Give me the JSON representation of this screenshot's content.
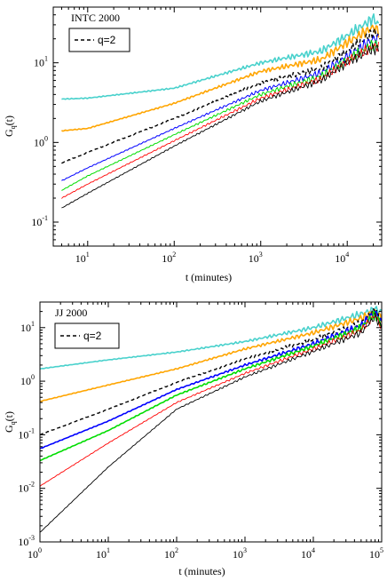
{
  "chart_data": [
    {
      "type": "line",
      "title": "INTC 2000",
      "xlabel": "t (minutes)",
      "ylabel_base": "G",
      "ylabel_sub": "q",
      "ylabel_tail": "(t)",
      "xscale": "log",
      "yscale": "log",
      "xlim": [
        4,
        25000
      ],
      "ylim": [
        0.05,
        50
      ],
      "x_ticks": [
        {
          "value": 10,
          "base": "10",
          "exp": "1"
        },
        {
          "value": 100,
          "base": "10",
          "exp": "2"
        },
        {
          "value": 1000,
          "base": "10",
          "exp": "3"
        },
        {
          "value": 10000,
          "base": "10",
          "exp": "4"
        }
      ],
      "y_ticks": [
        {
          "value": 0.1,
          "base": "10",
          "exp": "-1"
        },
        {
          "value": 1,
          "base": "10",
          "exp": "0"
        },
        {
          "value": 10,
          "base": "10",
          "exp": "1"
        }
      ],
      "legend": {
        "position": "top-left",
        "entries": [
          {
            "label": "q=2",
            "color": "#000000",
            "dash": "dashed"
          }
        ]
      },
      "series": [
        {
          "color": "#48d1cc",
          "width": 1.6,
          "dash": "solid",
          "points": [
            [
              5,
              3.5
            ],
            [
              10,
              3.6
            ],
            [
              100,
              4.8
            ],
            [
              1000,
              10
            ],
            [
              5000,
              14
            ],
            [
              10000,
              22
            ],
            [
              20000,
              36
            ],
            [
              23000,
              30
            ]
          ]
        },
        {
          "color": "#ffa500",
          "width": 1.6,
          "dash": "solid",
          "points": [
            [
              5,
              1.4
            ],
            [
              10,
              1.5
            ],
            [
              100,
              3.1
            ],
            [
              1000,
              7.8
            ],
            [
              5000,
              11
            ],
            [
              10000,
              18
            ],
            [
              20000,
              28
            ],
            [
              23000,
              25
            ]
          ]
        },
        {
          "color": "#000000",
          "width": 1.4,
          "dash": "dashed",
          "label": "q=2",
          "points": [
            [
              5,
              0.55
            ],
            [
              10,
              0.75
            ],
            [
              100,
              2.0
            ],
            [
              1000,
              5.6
            ],
            [
              5000,
              8.5
            ],
            [
              10000,
              14
            ],
            [
              20000,
              24
            ],
            [
              23000,
              23
            ]
          ]
        },
        {
          "color": "#0000ff",
          "width": 1.0,
          "dash": "solid",
          "points": [
            [
              5,
              0.33
            ],
            [
              10,
              0.48
            ],
            [
              100,
              1.5
            ],
            [
              1000,
              4.5
            ],
            [
              5000,
              7.5
            ],
            [
              10000,
              12
            ],
            [
              20000,
              20
            ],
            [
              23000,
              20
            ]
          ]
        },
        {
          "color": "#00dd00",
          "width": 1.0,
          "dash": "solid",
          "points": [
            [
              5,
              0.25
            ],
            [
              10,
              0.38
            ],
            [
              100,
              1.25
            ],
            [
              1000,
              4.0
            ],
            [
              5000,
              6.8
            ],
            [
              10000,
              11
            ],
            [
              20000,
              17
            ],
            [
              23000,
              17
            ]
          ]
        },
        {
          "color": "#ff0000",
          "width": 0.9,
          "dash": "solid",
          "points": [
            [
              5,
              0.2
            ],
            [
              10,
              0.3
            ],
            [
              100,
              1.05
            ],
            [
              1000,
              3.6
            ],
            [
              5000,
              6.3
            ],
            [
              10000,
              10.5
            ],
            [
              20000,
              16
            ],
            [
              23000,
              16
            ]
          ]
        },
        {
          "color": "#000000",
          "width": 0.9,
          "dash": "solid",
          "points": [
            [
              5,
              0.15
            ],
            [
              10,
              0.23
            ],
            [
              100,
              0.9
            ],
            [
              1000,
              3.3
            ],
            [
              5000,
              6.0
            ],
            [
              10000,
              10
            ],
            [
              20000,
              15
            ],
            [
              23000,
              15
            ]
          ]
        }
      ]
    },
    {
      "type": "line",
      "title": "JJ 2000",
      "xlabel": "t (minutes)",
      "ylabel_base": "G",
      "ylabel_sub": "q",
      "ylabel_tail": "(t)",
      "xscale": "log",
      "yscale": "log",
      "xlim": [
        1,
        100000
      ],
      "ylim": [
        0.001,
        30
      ],
      "x_ticks": [
        {
          "value": 1,
          "base": "10",
          "exp": "0"
        },
        {
          "value": 10,
          "base": "10",
          "exp": "1"
        },
        {
          "value": 100,
          "base": "10",
          "exp": "2"
        },
        {
          "value": 1000,
          "base": "10",
          "exp": "3"
        },
        {
          "value": 10000,
          "base": "10",
          "exp": "4"
        },
        {
          "value": 100000,
          "base": "10",
          "exp": "5"
        }
      ],
      "y_ticks": [
        {
          "value": 0.001,
          "base": "10",
          "exp": "-3"
        },
        {
          "value": 0.01,
          "base": "10",
          "exp": "-2"
        },
        {
          "value": 0.1,
          "base": "10",
          "exp": "-1"
        },
        {
          "value": 1,
          "base": "10",
          "exp": "0"
        },
        {
          "value": 10,
          "base": "10",
          "exp": "1"
        }
      ],
      "legend": {
        "position": "top-left",
        "entries": [
          {
            "label": "q=2",
            "color": "#000000",
            "dash": "dashed"
          }
        ]
      },
      "series": [
        {
          "color": "#48d1cc",
          "width": 1.6,
          "dash": "solid",
          "points": [
            [
              1,
              1.7
            ],
            [
              10,
              2.5
            ],
            [
              100,
              3.5
            ],
            [
              1000,
              5.5
            ],
            [
              10000,
              10
            ],
            [
              50000,
              18
            ],
            [
              80000,
              22
            ],
            [
              100000,
              20
            ]
          ]
        },
        {
          "color": "#ffa500",
          "width": 1.6,
          "dash": "solid",
          "points": [
            [
              1,
              0.42
            ],
            [
              10,
              0.85
            ],
            [
              100,
              1.7
            ],
            [
              1000,
              4.0
            ],
            [
              10000,
              8.0
            ],
            [
              50000,
              15
            ],
            [
              80000,
              20
            ],
            [
              100000,
              15
            ]
          ]
        },
        {
          "color": "#000000",
          "width": 1.4,
          "dash": "dashed",
          "label": "q=2",
          "points": [
            [
              1,
              0.1
            ],
            [
              10,
              0.3
            ],
            [
              100,
              0.95
            ],
            [
              1000,
              2.6
            ],
            [
              10000,
              6.0
            ],
            [
              50000,
              12
            ],
            [
              80000,
              22
            ],
            [
              100000,
              13
            ]
          ]
        },
        {
          "color": "#0000ff",
          "width": 1.6,
          "dash": "solid",
          "points": [
            [
              1,
              0.055
            ],
            [
              10,
              0.18
            ],
            [
              100,
              0.7
            ],
            [
              1000,
              2.0
            ],
            [
              10000,
              5.0
            ],
            [
              50000,
              11
            ],
            [
              80000,
              20
            ],
            [
              100000,
              12
            ]
          ]
        },
        {
          "color": "#00dd00",
          "width": 1.6,
          "dash": "solid",
          "points": [
            [
              1,
              0.033
            ],
            [
              10,
              0.12
            ],
            [
              100,
              0.55
            ],
            [
              1000,
              1.7
            ],
            [
              10000,
              4.5
            ],
            [
              50000,
              10
            ],
            [
              80000,
              18
            ],
            [
              100000,
              11
            ]
          ]
        },
        {
          "color": "#ff0000",
          "width": 0.9,
          "dash": "solid",
          "points": [
            [
              1,
              0.011
            ],
            [
              10,
              0.07
            ],
            [
              100,
              0.4
            ],
            [
              1000,
              1.4
            ],
            [
              10000,
              4.0
            ],
            [
              50000,
              9
            ],
            [
              80000,
              17
            ],
            [
              100000,
              10
            ]
          ]
        },
        {
          "color": "#000000",
          "width": 0.9,
          "dash": "solid",
          "points": [
            [
              1,
              0.0015
            ],
            [
              10,
              0.025
            ],
            [
              100,
              0.3
            ],
            [
              1000,
              1.2
            ],
            [
              10000,
              3.6
            ],
            [
              50000,
              8
            ],
            [
              80000,
              16
            ],
            [
              100000,
              10
            ]
          ]
        }
      ]
    }
  ]
}
